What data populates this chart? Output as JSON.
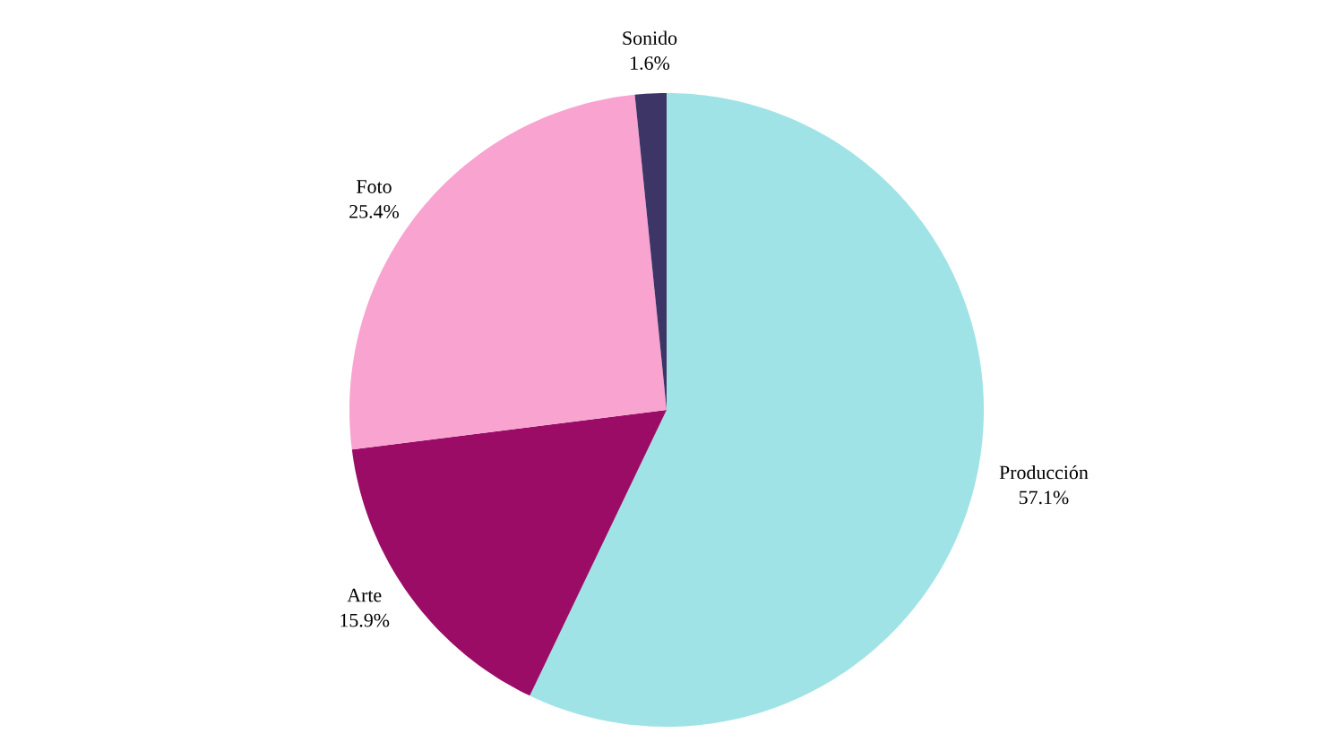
{
  "chart_data": {
    "type": "pie",
    "categories": [
      "Producción",
      "Arte",
      "Foto",
      "Sonido"
    ],
    "values": [
      57.1,
      15.9,
      25.4,
      1.6
    ],
    "value_labels": [
      "57.1%",
      "15.9%",
      "25.4%",
      "1.6%"
    ],
    "colors": [
      "#a0e3e6",
      "#9b0c66",
      "#f9a3d1",
      "#3d3566"
    ]
  }
}
